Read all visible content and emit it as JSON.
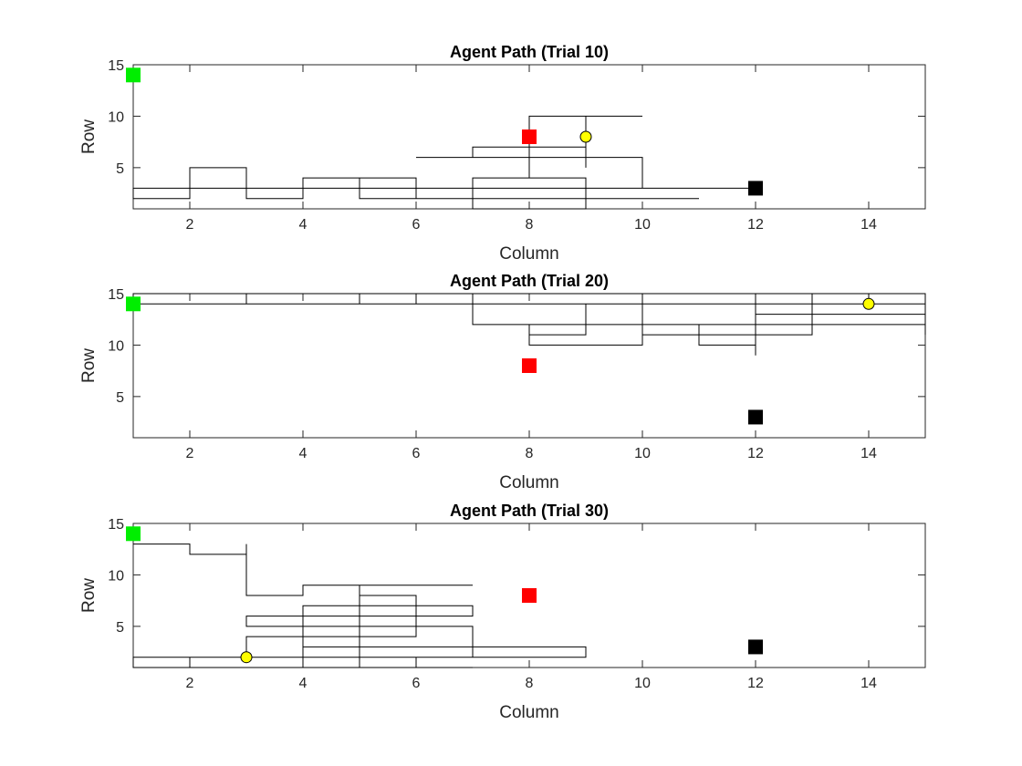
{
  "chart_data": [
    {
      "type": "line",
      "title": "Agent Path (Trial 10)",
      "xlabel": "Column",
      "ylabel": "Row",
      "xlim": [
        1,
        15
      ],
      "ylim": [
        1,
        15
      ],
      "xticks": [
        2,
        4,
        6,
        8,
        10,
        12,
        14
      ],
      "yticks": [
        5,
        10,
        15
      ],
      "markers": {
        "start": [
          1,
          14
        ],
        "obstacle": [
          8,
          8
        ],
        "goal": [
          12,
          3
        ],
        "agent": [
          9,
          8
        ]
      },
      "path": [
        [
          1,
          3
        ],
        [
          12,
          3
        ],
        [
          12,
          3
        ],
        [
          1,
          3
        ],
        [
          1,
          2
        ],
        [
          2,
          2
        ],
        [
          2,
          5
        ],
        [
          3,
          5
        ],
        [
          3,
          2
        ],
        [
          4,
          2
        ],
        [
          4,
          3
        ],
        [
          4,
          4
        ],
        [
          5,
          4
        ],
        [
          5,
          2
        ],
        [
          11,
          2
        ],
        [
          11,
          2
        ],
        [
          6,
          2
        ],
        [
          6,
          4
        ],
        [
          5,
          4
        ],
        [
          5,
          3
        ],
        [
          5,
          3
        ],
        [
          7,
          3
        ],
        [
          7,
          1
        ],
        [
          9,
          1
        ],
        [
          9,
          4
        ],
        [
          7,
          4
        ],
        [
          7,
          1
        ],
        [
          9,
          1
        ],
        [
          9,
          3
        ],
        [
          10,
          3
        ],
        [
          10,
          6
        ],
        [
          6,
          6
        ],
        [
          6,
          6
        ],
        [
          8,
          6
        ],
        [
          8,
          4
        ],
        [
          8,
          10
        ],
        [
          10,
          10
        ],
        [
          9,
          10
        ],
        [
          9,
          5
        ],
        [
          9,
          7
        ],
        [
          7,
          7
        ],
        [
          7,
          6
        ]
      ],
      "colors": {
        "start": "#00ee00",
        "obstacle": "#ff0000",
        "goal": "#000000",
        "agent": "#ffff00"
      }
    },
    {
      "type": "line",
      "title": "Agent Path (Trial 20)",
      "xlabel": "Column",
      "ylabel": "Row",
      "xlim": [
        1,
        15
      ],
      "ylim": [
        1,
        15
      ],
      "xticks": [
        2,
        4,
        6,
        8,
        10,
        12,
        14
      ],
      "yticks": [
        5,
        10,
        15
      ],
      "markers": {
        "start": [
          1,
          14
        ],
        "obstacle": [
          8,
          8
        ],
        "goal": [
          12,
          3
        ],
        "agent": [
          14,
          14
        ]
      },
      "path": [
        [
          1,
          14
        ],
        [
          3,
          14
        ],
        [
          3,
          15
        ],
        [
          5,
          15
        ],
        [
          5,
          14
        ],
        [
          6,
          14
        ],
        [
          6,
          15
        ],
        [
          7,
          15
        ],
        [
          7,
          12
        ],
        [
          8,
          12
        ],
        [
          8,
          10
        ],
        [
          10,
          10
        ],
        [
          10,
          15
        ],
        [
          15,
          15
        ],
        [
          15,
          11
        ],
        [
          15,
          12
        ],
        [
          11,
          12
        ],
        [
          11,
          10
        ],
        [
          12,
          10
        ],
        [
          12,
          9
        ],
        [
          12,
          15
        ],
        [
          13,
          15
        ],
        [
          13,
          11
        ],
        [
          10,
          11
        ],
        [
          10,
          15
        ],
        [
          14,
          15
        ],
        [
          14,
          14
        ],
        [
          9,
          14
        ],
        [
          9,
          11
        ],
        [
          8,
          11
        ],
        [
          8,
          12
        ],
        [
          8,
          12
        ],
        [
          12,
          12
        ],
        [
          12,
          13
        ],
        [
          15,
          13
        ],
        [
          15,
          14
        ],
        [
          1,
          14
        ],
        [
          1,
          15
        ],
        [
          15,
          15
        ]
      ],
      "colors": {
        "start": "#00ee00",
        "obstacle": "#ff0000",
        "goal": "#000000",
        "agent": "#ffff00"
      }
    },
    {
      "type": "line",
      "title": "Agent Path (Trial 30)",
      "xlabel": "Column",
      "ylabel": "Row",
      "xlim": [
        1,
        15
      ],
      "ylim": [
        1,
        15
      ],
      "xticks": [
        2,
        4,
        6,
        8,
        10,
        12,
        14
      ],
      "yticks": [
        5,
        10,
        15
      ],
      "markers": {
        "start": [
          1,
          14
        ],
        "obstacle": [
          8,
          8
        ],
        "goal": [
          12,
          3
        ],
        "agent": [
          3,
          2
        ]
      },
      "path": [
        [
          1,
          13
        ],
        [
          2,
          13
        ],
        [
          2,
          12
        ],
        [
          3,
          12
        ],
        [
          3,
          13
        ],
        [
          3,
          8
        ],
        [
          4,
          8
        ],
        [
          4,
          9
        ],
        [
          7,
          9
        ],
        [
          5,
          9
        ],
        [
          5,
          5
        ],
        [
          3,
          5
        ],
        [
          3,
          6
        ],
        [
          7,
          6
        ],
        [
          7,
          7
        ],
        [
          4,
          7
        ],
        [
          4,
          1
        ],
        [
          1,
          1
        ],
        [
          1,
          2
        ],
        [
          3,
          2
        ],
        [
          3,
          4
        ],
        [
          6,
          4
        ],
        [
          6,
          8
        ],
        [
          5,
          8
        ],
        [
          5,
          1
        ],
        [
          4,
          1
        ],
        [
          4,
          3
        ],
        [
          9,
          3
        ],
        [
          9,
          2
        ],
        [
          2,
          2
        ],
        [
          2,
          1
        ],
        [
          6,
          1
        ],
        [
          6,
          2
        ],
        [
          7,
          2
        ],
        [
          7,
          5
        ],
        [
          4,
          5
        ],
        [
          4,
          1
        ],
        [
          7,
          1
        ]
      ],
      "colors": {
        "start": "#00ee00",
        "obstacle": "#ff0000",
        "goal": "#000000",
        "agent": "#ffff00"
      }
    }
  ]
}
